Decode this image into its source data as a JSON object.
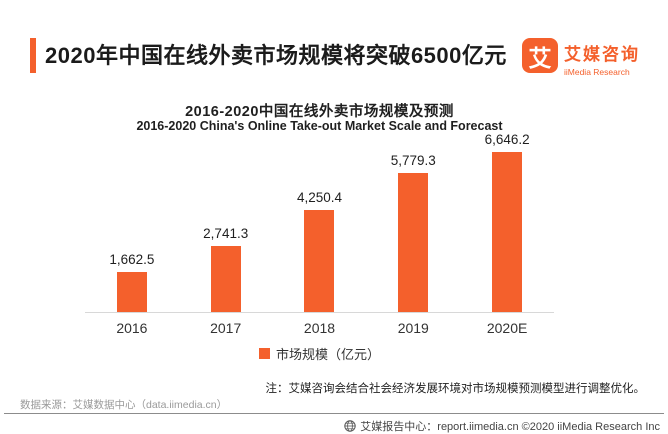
{
  "header": {
    "title": "2020年中国在线外卖市场规模将突破6500亿元",
    "logo_glyph": "艾",
    "brand_cn": "艾媒咨询",
    "brand_en": "iiMedia Research"
  },
  "chart": {
    "title_cn": "2016-2020中国在线外卖市场规模及预测",
    "title_en": "2016-2020 China's Online Take-out Market Scale and Forecast",
    "legend_label": "市场规模（亿元）",
    "note": "注：艾媒咨询会结合社会经济发展环境对市场规模预测模型进行调整优化。"
  },
  "chart_data": {
    "type": "bar",
    "categories": [
      "2016",
      "2017",
      "2018",
      "2019",
      "2020E"
    ],
    "values": [
      1662.5,
      2741.3,
      4250.4,
      5779.3,
      6646.2
    ],
    "value_labels": [
      "1,662.5",
      "2,741.3",
      "4,250.4",
      "5,779.3",
      "6,646.2"
    ],
    "title": "2016-2020中国在线外卖市场规模及预测",
    "subtitle": "2016-2020 China's Online Take-out Market Scale and Forecast",
    "xlabel": "",
    "ylabel": "市场规模（亿元）",
    "ylim": [
      0,
      6646.2
    ],
    "grid": false,
    "legend_position": "bottom",
    "bar_color": "#F4602C"
  },
  "footer": {
    "source": "数据来源：艾媒数据中心（data.iimedia.cn）",
    "credit": "艾媒报告中心：report.iimedia.cn  ©2020  iiMedia Research Inc"
  },
  "colors": {
    "accent": "#F4602C",
    "axis_line": "#d8d8d8",
    "text_dark": "#1f1f1f",
    "text_gray": "#9a9a9a"
  }
}
